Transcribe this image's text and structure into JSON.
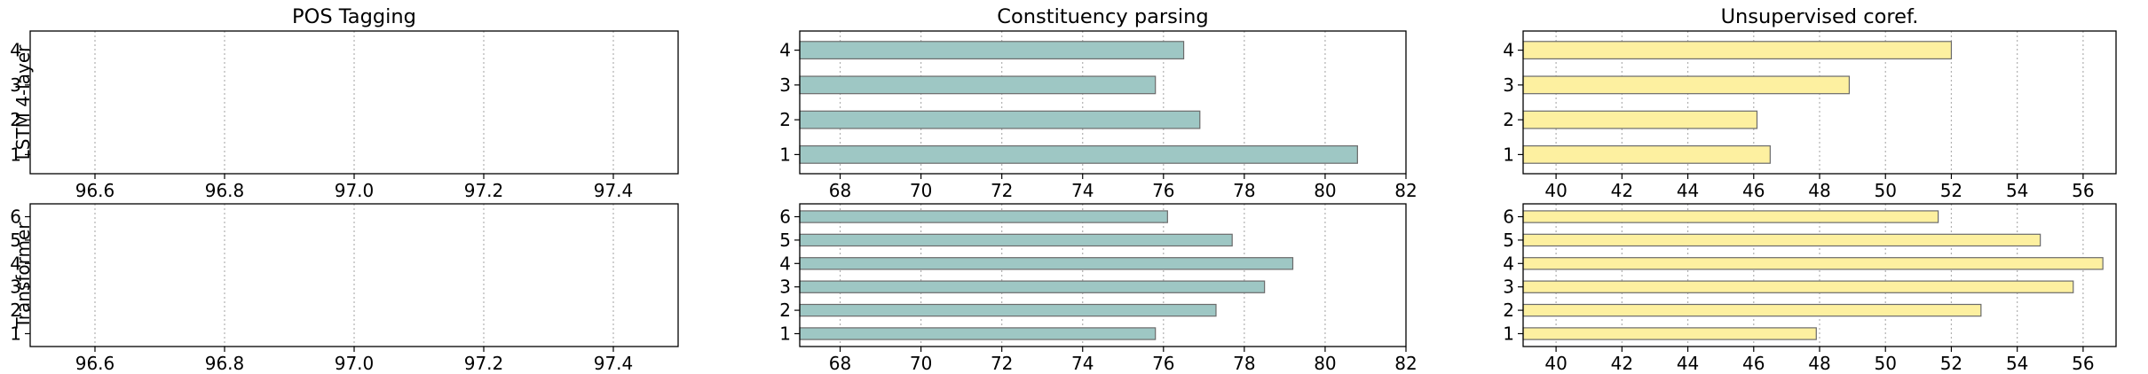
{
  "chart_data": [
    {
      "type": "bar",
      "orientation": "horizontal",
      "panel": "lstm-pos",
      "title": "POS Tagging",
      "ylabel": "LSTM 4-layer",
      "categories": [
        "1",
        "2",
        "3",
        "4"
      ],
      "values": [
        null,
        null,
        null,
        null
      ],
      "xlim": [
        96.5,
        97.5
      ],
      "xticks": [
        "96.6",
        "96.8",
        "97.0",
        "97.2",
        "97.4"
      ],
      "color": "#9ec7c4",
      "grid": "x-dotted"
    },
    {
      "type": "bar",
      "orientation": "horizontal",
      "panel": "lstm-const",
      "title": "Constituency parsing",
      "categories": [
        "1",
        "2",
        "3",
        "4"
      ],
      "values": [
        80.8,
        76.9,
        75.8,
        76.5
      ],
      "xlim": [
        67,
        82
      ],
      "xticks": [
        "68",
        "70",
        "72",
        "74",
        "76",
        "78",
        "80",
        "82"
      ],
      "color": "#9ec7c4",
      "grid": "x-dotted"
    },
    {
      "type": "bar",
      "orientation": "horizontal",
      "panel": "lstm-coref",
      "title": "Unsupervised coref.",
      "categories": [
        "1",
        "2",
        "3",
        "4"
      ],
      "values": [
        46.5,
        46.1,
        48.9,
        52.0
      ],
      "xlim": [
        39,
        57
      ],
      "xticks": [
        "40",
        "42",
        "44",
        "46",
        "48",
        "50",
        "52",
        "54",
        "56"
      ],
      "color": "#fdf0a0",
      "grid": "x-dotted"
    },
    {
      "type": "bar",
      "orientation": "horizontal",
      "panel": "tf-pos",
      "ylabel": "Transformer",
      "categories": [
        "1",
        "2",
        "3",
        "4",
        "5",
        "6"
      ],
      "values": [
        null,
        null,
        null,
        null,
        null,
        null
      ],
      "xlim": [
        96.5,
        97.5
      ],
      "xticks": [
        "96.6",
        "96.8",
        "97.0",
        "97.2",
        "97.4"
      ],
      "color": "#9ec7c4",
      "grid": "x-dotted"
    },
    {
      "type": "bar",
      "orientation": "horizontal",
      "panel": "tf-const",
      "categories": [
        "1",
        "2",
        "3",
        "4",
        "5",
        "6"
      ],
      "values": [
        75.8,
        77.3,
        78.5,
        79.2,
        77.7,
        76.1
      ],
      "xlim": [
        67,
        82
      ],
      "xticks": [
        "68",
        "70",
        "72",
        "74",
        "76",
        "78",
        "80",
        "82"
      ],
      "color": "#9ec7c4",
      "grid": "x-dotted"
    },
    {
      "type": "bar",
      "orientation": "horizontal",
      "panel": "tf-coref",
      "categories": [
        "1",
        "2",
        "3",
        "4",
        "5",
        "6"
      ],
      "values": [
        47.9,
        52.9,
        55.7,
        56.6,
        54.7,
        51.6
      ],
      "xlim": [
        39,
        57
      ],
      "xticks": [
        "40",
        "42",
        "44",
        "46",
        "48",
        "50",
        "52",
        "54",
        "56"
      ],
      "color": "#fdf0a0",
      "grid": "x-dotted"
    }
  ]
}
